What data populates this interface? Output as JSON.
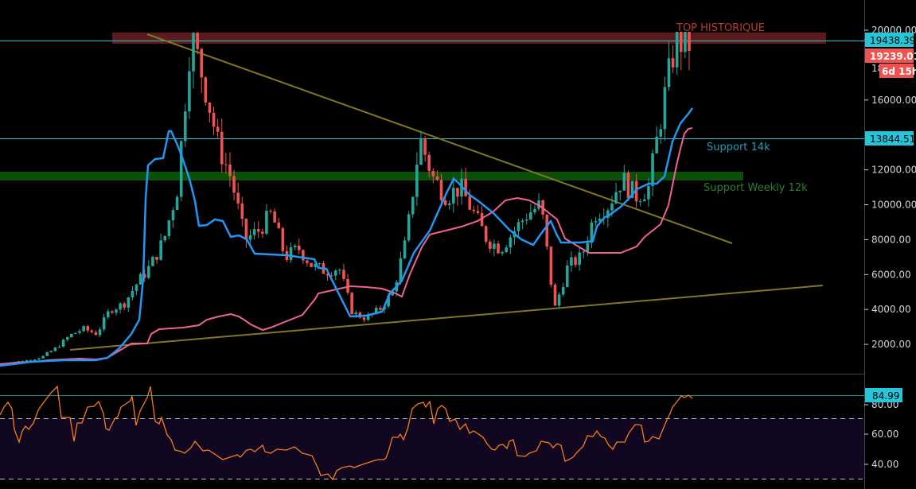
{
  "chart_data": {
    "type": "candlestick",
    "title": "",
    "panes": [
      {
        "name": "price",
        "yaxis": {
          "min": 0,
          "max": 21000,
          "ticks": [
            2000,
            4000,
            6000,
            8000,
            10000,
            12000,
            14000,
            16000,
            18000,
            20000
          ],
          "tick_labels": [
            "2000.00",
            "4000.00",
            "6000.00",
            "8000.00",
            "10000.00",
            "12000.00",
            "14000.00",
            "16000.00",
            "18000.00",
            "20000.00"
          ]
        },
        "indicators": [
          {
            "name": "Fast MA",
            "color": "#2196f3"
          },
          {
            "name": "Slow MA",
            "color": "#f06292"
          }
        ],
        "price_path_approx": [
          900,
          1000,
          1100,
          1300,
          1800,
          2500,
          2900,
          2600,
          4000,
          4300,
          5500,
          6500,
          8000,
          11000,
          19800,
          17000,
          13500,
          11500,
          8000,
          8500,
          9500,
          7000,
          7500,
          6500,
          6200,
          6400,
          3800,
          3500,
          4000,
          5000,
          8000,
          13800,
          11500,
          10500,
          11000,
          9500,
          8000,
          7500,
          8500,
          9500,
          10000,
          4000,
          6500,
          7000,
          9500,
          10000,
          11500,
          10500,
          11000,
          15500,
          19400,
          19239
        ]
      },
      {
        "name": "RSI",
        "yaxis": {
          "ticks": [
            40,
            60,
            80
          ],
          "tick_labels": [
            "40.00",
            "60.00",
            "80.00"
          ]
        },
        "bands": {
          "upper": 70,
          "lower": 30
        },
        "color": "#f57c1f",
        "last_value": 84.99
      }
    ]
  },
  "price_scale": {
    "ticks": [
      "20000.00",
      "18000.00",
      "16000.00",
      "12000.00",
      "10000.00",
      "8000.00",
      "6000.00",
      "4000.00",
      "2000.00"
    ]
  },
  "badges": {
    "ath_level": "19438.39",
    "last_price": "19239.01",
    "countdown": "6d 15h",
    "support_level": "13844.51",
    "rsi_value": "84.99"
  },
  "rsi_scale": {
    "ticks": [
      "80.00",
      "60.00",
      "40.00"
    ]
  },
  "annotations": {
    "top": "TOP HISTORIQUE",
    "support_14k": "Support 14k",
    "support_weekly": "Support Weekly 12k"
  },
  "colors": {
    "up": "#26a69a",
    "down": "#ef5350",
    "fast_ma": "#2196f3",
    "slow_ma": "#f06292",
    "rsi": "#f57c1f",
    "hline": "#26c6da",
    "ath_zone": "#5c1a1a",
    "support_zone": "#0b4f0b",
    "trendline": "#807820"
  }
}
